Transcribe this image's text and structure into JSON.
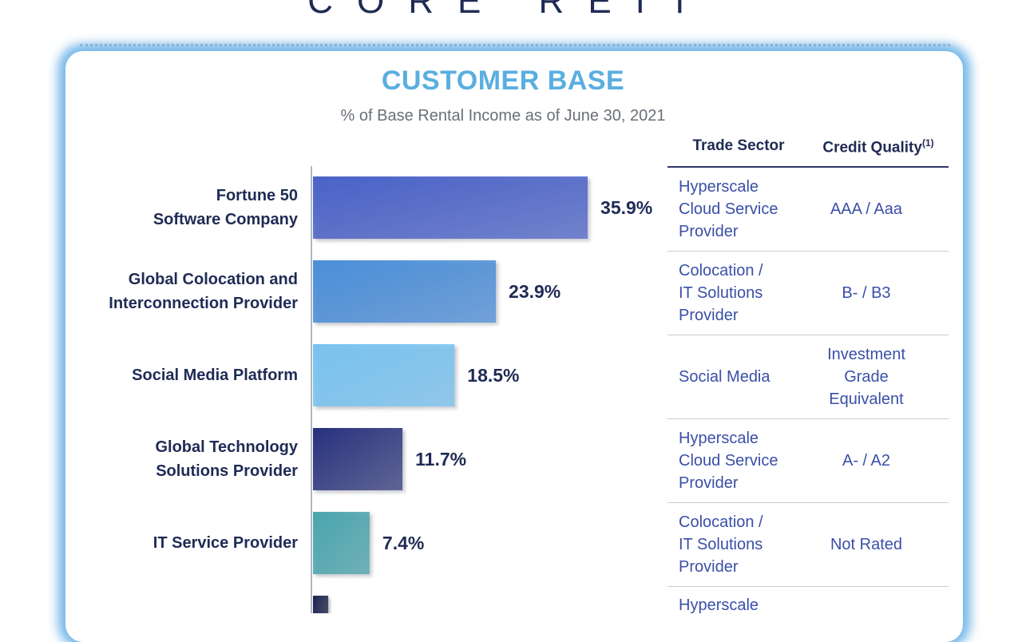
{
  "brand": "CORE REIT",
  "title": "CUSTOMER BASE",
  "subtitle": "% of Base Rental Income as of June 30, 2021",
  "table_headers": {
    "sector": "Trade Sector",
    "credit": "Credit Quality",
    "credit_note": "(1)"
  },
  "rows": [
    {
      "label": "Fortune 50\nSoftware Company",
      "value_label": "35.9%",
      "sector": "Hyperscale\nCloud Service\nProvider",
      "credit": "AAA / Aaa"
    },
    {
      "label": "Global Colocation and\nInterconnection Provider",
      "value_label": "23.9%",
      "sector": "Colocation /\nIT Solutions\nProvider",
      "credit": "B- / B3"
    },
    {
      "label": "Social Media Platform",
      "value_label": "18.5%",
      "sector": "Social Media",
      "credit": "Investment\nGrade\nEquivalent"
    },
    {
      "label": "Global Technology\nSolutions Provider",
      "value_label": "11.7%",
      "sector": "Hyperscale\nCloud Service\nProvider",
      "credit": "A- / A2"
    },
    {
      "label": "IT Service Provider",
      "value_label": "7.4%",
      "sector": "Colocation /\nIT Solutions\nProvider",
      "credit": "Not Rated"
    },
    {
      "label": "",
      "value_label": "",
      "sector": "Hyperscale",
      "credit": ""
    }
  ],
  "chart_data": {
    "type": "bar",
    "orientation": "horizontal",
    "title": "CUSTOMER BASE",
    "subtitle": "% of Base Rental Income as of June 30, 2021",
    "categories": [
      "Fortune 50 Software Company",
      "Global Colocation and Interconnection Provider",
      "Social Media Platform",
      "Global Technology Solutions Provider",
      "IT Service Provider",
      ""
    ],
    "values": [
      35.9,
      23.9,
      18.5,
      11.7,
      7.4,
      2.0
    ],
    "colors": [
      "#4a63c8",
      "#4a8fd8",
      "#79c3ef",
      "#26307e",
      "#4aa6ae",
      "#1c2350"
    ],
    "xlim": [
      0,
      36
    ],
    "grid": false
  }
}
